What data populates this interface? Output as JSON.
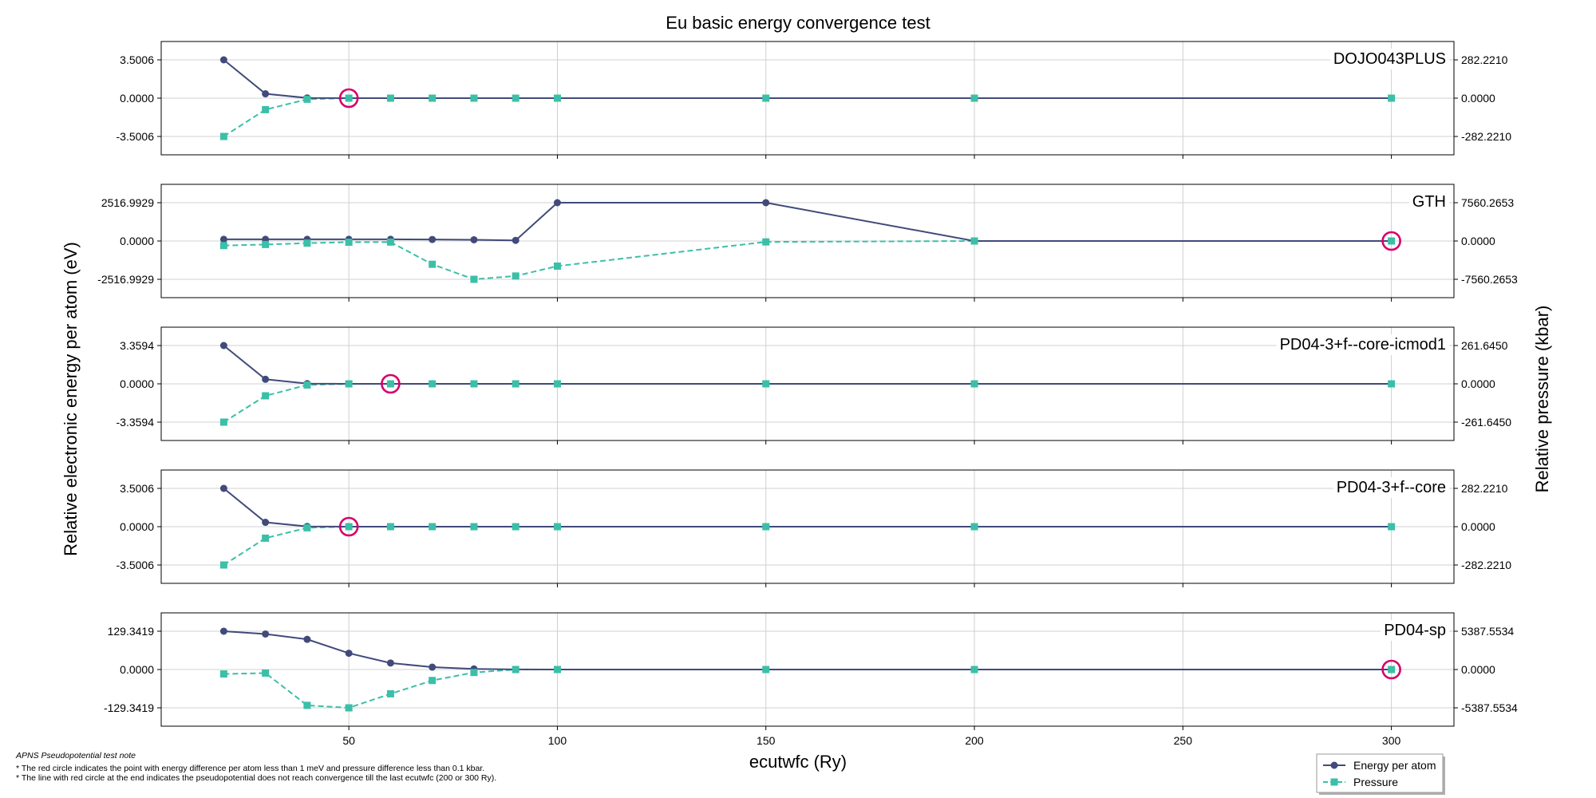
{
  "chart_data": {
    "type": "line",
    "title": "Eu basic energy convergence test",
    "xlabel": "ecutwfc (Ry)",
    "ylabel_left": "Relative electronic energy per atom (eV)",
    "ylabel_right": "Relative pressure (kbar)",
    "xlim": [
      5,
      315
    ],
    "xticks": [
      50,
      100,
      150,
      200,
      250,
      300
    ],
    "xtick_labels": [
      "50",
      "100",
      "150",
      "200",
      "250",
      "300"
    ],
    "x": [
      20,
      30,
      40,
      50,
      60,
      70,
      80,
      90,
      100,
      150,
      200,
      300
    ],
    "grid": true,
    "legend": {
      "location": "lower-right",
      "entries": [
        {
          "label": "Energy per atom",
          "color": "#414a7a",
          "marker": "circle",
          "linestyle": "solid"
        },
        {
          "label": "Pressure",
          "color": "#3bbfa8",
          "marker": "square",
          "linestyle": "dashed"
        }
      ]
    },
    "colors": {
      "energy": "#414a7a",
      "pressure": "#3bbfa8",
      "highlight": "#d6006c"
    },
    "panels": [
      {
        "name": "DOJO043PLUS",
        "energy_scale": 3.5006,
        "energy_ticks": [
          "3.5006",
          "0.0000",
          "-3.5006"
        ],
        "pressure_ticks": [
          "282.2210",
          "0.0000",
          "-282.2210"
        ],
        "energy": [
          3.5006,
          0.4,
          0.02,
          0,
          0,
          0,
          0,
          0,
          0,
          0,
          0,
          0
        ],
        "pressure": [
          -3.5006,
          -1.05,
          -0.1,
          0,
          0,
          0,
          0,
          0,
          0,
          0,
          0,
          0
        ],
        "converged_x": 50
      },
      {
        "name": "GTH",
        "energy_scale": 2516.9929,
        "energy_ticks": [
          "2516.9929",
          "0.0000",
          "-2516.9929"
        ],
        "pressure_ticks": [
          "7560.2653",
          "0.0000",
          "-7560.2653"
        ],
        "energy": [
          110,
          110,
          110,
          110,
          110,
          100,
          80,
          40,
          2516.9929,
          2516.9929,
          0,
          0
        ],
        "pressure": [
          -300,
          -230,
          -140,
          -80,
          -70,
          -1530,
          -2516.9929,
          -2300,
          -1650,
          -60,
          0,
          0
        ],
        "converged_x": 300
      },
      {
        "name": "PD04-3+f--core-icmod1",
        "energy_scale": 3.3594,
        "energy_ticks": [
          "3.3594",
          "0.0000",
          "-3.3594"
        ],
        "pressure_ticks": [
          "261.6450",
          "0.0000",
          "-261.6450"
        ],
        "energy": [
          3.3594,
          0.4,
          0.02,
          0,
          0,
          0,
          0,
          0,
          0,
          0,
          0,
          0
        ],
        "pressure": [
          -3.3594,
          -1.05,
          -0.1,
          0,
          0,
          0,
          0,
          0,
          0,
          0,
          0,
          0
        ],
        "converged_x": 60
      },
      {
        "name": "PD04-3+f--core",
        "energy_scale": 3.5006,
        "energy_ticks": [
          "3.5006",
          "0.0000",
          "-3.5006"
        ],
        "pressure_ticks": [
          "282.2210",
          "0.0000",
          "-282.2210"
        ],
        "energy": [
          3.5006,
          0.4,
          0.02,
          0,
          0,
          0,
          0,
          0,
          0,
          0,
          0,
          0
        ],
        "pressure": [
          -3.5006,
          -1.05,
          -0.1,
          0,
          0,
          0,
          0,
          0,
          0,
          0,
          0,
          0
        ],
        "converged_x": 50
      },
      {
        "name": "PD04-sp",
        "energy_scale": 129.3419,
        "energy_ticks": [
          "129.3419",
          "0.0000",
          "-129.3419"
        ],
        "pressure_ticks": [
          "5387.5534",
          "0.0000",
          "-5387.5534"
        ],
        "energy": [
          129.3419,
          120,
          102,
          55,
          22,
          8,
          2,
          0.3,
          0,
          0,
          0,
          0
        ],
        "pressure": [
          -15,
          -12,
          -121,
          -129.3419,
          -82,
          -37,
          -10,
          0,
          0,
          0,
          0,
          0
        ],
        "converged_x": 300
      }
    ]
  },
  "notes": {
    "heading": "APNS Pseudopotential test note",
    "lines": [
      "* The red circle indicates the point with energy difference per atom less than 1 meV and pressure difference less than 0.1 kbar.",
      "* The line with red circle at the end indicates the pseudopotential does not reach convergence till the last ecutwfc (200 or 300 Ry)."
    ]
  }
}
